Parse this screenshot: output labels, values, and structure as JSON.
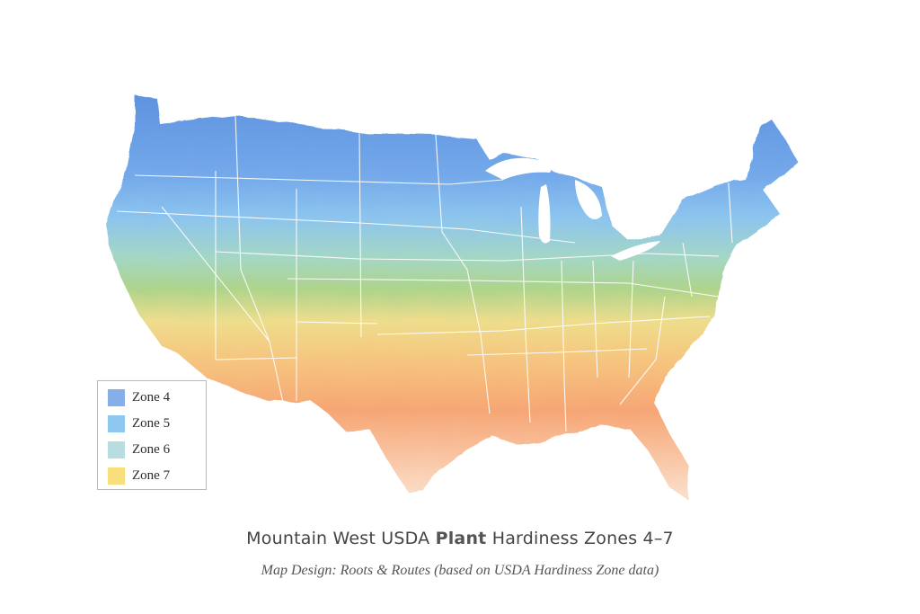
{
  "map": {
    "legend": {
      "items": [
        {
          "label": "Zone 4",
          "color": "#86aee8"
        },
        {
          "label": "Zone 5",
          "color": "#8ec7ef"
        },
        {
          "label": "Zone 6",
          "color": "#b8dde0"
        },
        {
          "label": "Zone 7",
          "color": "#f8df7c"
        }
      ]
    },
    "gradient_colors": [
      "#5f93e0",
      "#7db7ec",
      "#aad8e0",
      "#a9d48a",
      "#f1e08c",
      "#f7c07c",
      "#f6a374",
      "#fbe2d0"
    ]
  },
  "caption": {
    "title_before": "Mountain West USDA",
    "title_bold": "Plant",
    "title_after": "Hardiness Zones 4–7",
    "credit": "Map Design: Roots & Routes (based on USDA Hardiness Zone data)"
  }
}
